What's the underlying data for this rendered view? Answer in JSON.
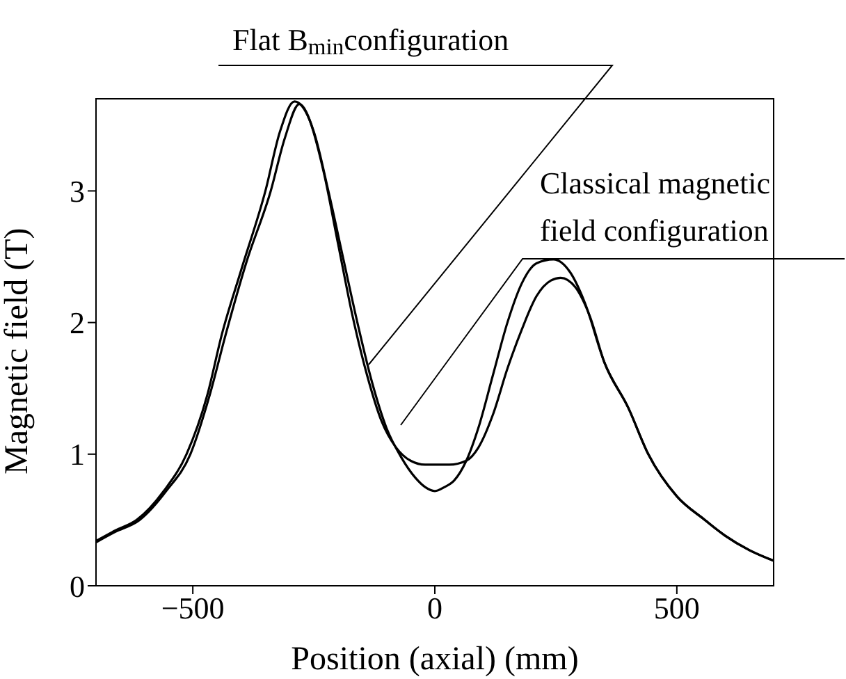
{
  "chart_data": {
    "type": "line",
    "xlabel": "Position (axial) (mm)",
    "ylabel": "Magnetic field (T)",
    "xlim": [
      -700,
      700
    ],
    "xticks": [
      -500,
      0,
      500
    ],
    "ylim": [
      0,
      3.7
    ],
    "yticks": [
      0,
      1,
      2,
      3
    ],
    "grid": false,
    "marker": "none",
    "line_style": "solid",
    "annotations": [
      "Flat B$_{min}$configuration",
      "Classical magnetic field configuration"
    ],
    "series": [
      {
        "color": "#000000",
        "x": [
          -700,
          -660,
          -616,
          -560,
          -513,
          -470,
          -440,
          -400,
          -350,
          -320,
          -290,
          -260,
          -230,
          -200,
          -170,
          -140,
          -110,
          -80,
          -50,
          -20,
          0,
          30,
          65,
          90,
          120,
          150,
          180,
          210,
          240,
          260,
          290,
          320,
          350,
          400,
          441,
          500,
          558,
          600,
          650,
          700
        ],
        "values": [
          0.34,
          0.42,
          0.5,
          0.72,
          1.0,
          1.45,
          1.91,
          2.4,
          3.0,
          3.45,
          3.68,
          3.55,
          3.15,
          2.6,
          2.05,
          1.6,
          1.25,
          1.05,
          0.95,
          0.92,
          0.92,
          0.92,
          0.95,
          1.05,
          1.3,
          1.65,
          1.95,
          2.2,
          2.32,
          2.34,
          2.27,
          2.05,
          1.7,
          1.35,
          1.0,
          0.68,
          0.5,
          0.38,
          0.27,
          0.19
        ]
      },
      {
        "color": "#000000",
        "x": [
          -700,
          -660,
          -610,
          -555,
          -505,
          -465,
          -432,
          -390,
          -339,
          -310,
          -280,
          -250,
          -220,
          -190,
          -160,
          -130,
          -100,
          -70,
          -40,
          -20,
          0,
          20,
          40,
          65,
          90,
          120,
          150,
          180,
          210,
          245,
          280,
          310,
          350,
          400,
          441,
          500,
          558,
          600,
          650,
          700
        ],
        "values": [
          0.33,
          0.41,
          0.5,
          0.72,
          1.0,
          1.45,
          1.91,
          2.45,
          3.0,
          3.4,
          3.66,
          3.45,
          3.0,
          2.5,
          2.0,
          1.55,
          1.2,
          0.98,
          0.82,
          0.75,
          0.72,
          0.75,
          0.8,
          0.95,
          1.2,
          1.6,
          2.0,
          2.3,
          2.45,
          2.48,
          2.38,
          2.15,
          1.7,
          1.35,
          1.0,
          0.68,
          0.5,
          0.38,
          0.27,
          0.19
        ]
      }
    ]
  }
}
